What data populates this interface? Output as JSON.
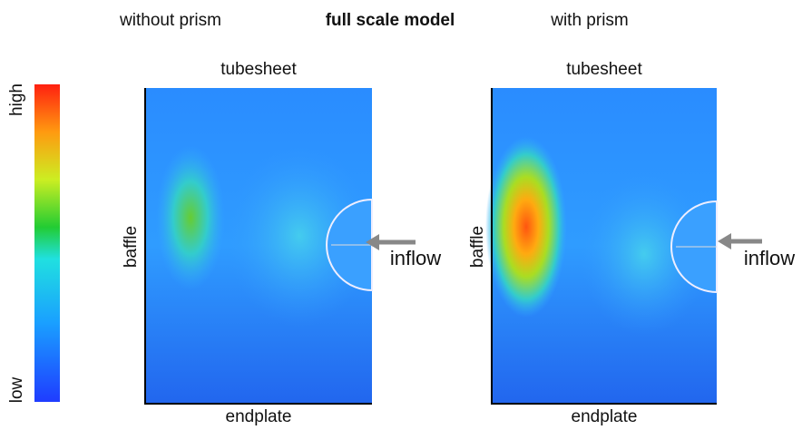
{
  "header": {
    "left": "without prism",
    "center": "full scale model",
    "right": "with prism"
  },
  "colorbar": {
    "high": "high",
    "low": "low"
  },
  "panels": [
    {
      "top": "tubesheet",
      "side": "baffle",
      "bottom": "endplate",
      "arrow": "inflow"
    },
    {
      "top": "tubesheet",
      "side": "baffle",
      "bottom": "endplate",
      "arrow": "inflow"
    }
  ]
}
